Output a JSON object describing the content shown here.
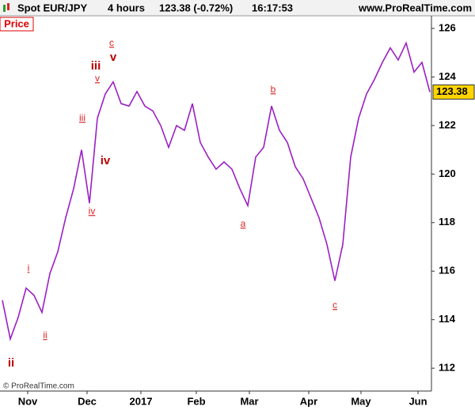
{
  "chart_data": {
    "type": "line",
    "title": "Spot EUR/JPY",
    "interval": "4 hours",
    "quote": "123.38 (-0.72%)",
    "time": "16:17:53",
    "source": "www.ProRealTime.com",
    "panel_label": "Price",
    "copyright": "© ProRealTime.com",
    "series": [
      {
        "color": "#9b1fc4",
        "values": [
          114.8,
          113.2,
          114.1,
          115.3,
          115.0,
          114.3,
          115.9,
          116.8,
          118.2,
          119.4,
          121.0,
          118.8,
          122.3,
          123.3,
          123.8,
          122.9,
          122.8,
          123.4,
          122.8,
          122.6,
          122.0,
          121.1,
          122.0,
          121.8,
          122.9,
          121.3,
          120.7,
          120.2,
          120.5,
          120.2,
          119.4,
          118.7,
          120.7,
          121.1,
          122.8,
          121.8,
          121.3,
          120.3,
          119.8,
          119.0,
          118.2,
          117.1,
          115.6,
          117.1,
          120.7,
          122.3,
          123.3,
          123.9,
          124.6,
          125.2,
          124.7,
          125.4,
          124.2,
          124.6,
          123.38
        ]
      }
    ],
    "xlim": [
      -0.3,
      54.2
    ],
    "xticks": [
      {
        "value": 3.2,
        "label": "Nov"
      },
      {
        "value": 10.7,
        "label": "Dec"
      },
      {
        "value": 17.5,
        "label": "2017"
      },
      {
        "value": 24.5,
        "label": "Feb"
      },
      {
        "value": 31.2,
        "label": "Mar"
      },
      {
        "value": 38.7,
        "label": "Apr"
      },
      {
        "value": 45.3,
        "label": "May"
      },
      {
        "value": 52.5,
        "label": "Jun"
      }
    ],
    "ylim": [
      111.06,
      126.52
    ],
    "yticks": [
      112,
      114,
      116,
      118,
      120,
      122,
      124,
      126
    ],
    "grid": false,
    "annotations": [
      "ii",
      "i",
      "ii",
      "iii",
      "iv",
      "v",
      "iii",
      "iv",
      "c",
      "v",
      "a",
      "b",
      "c"
    ]
  }
}
